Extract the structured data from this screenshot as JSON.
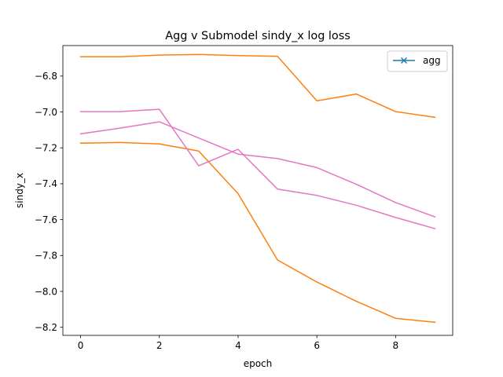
{
  "chart_data": {
    "type": "line",
    "title": "Agg v Submodel sindy_x log loss",
    "xlabel": "epoch",
    "ylabel": "sindy_x",
    "xlim": [
      -0.45,
      9.45
    ],
    "ylim": [
      -8.245,
      -6.63
    ],
    "x_ticks": [
      0,
      2,
      4,
      6,
      8
    ],
    "y_ticks": [
      -8.2,
      -8.0,
      -7.8,
      -7.6,
      -7.4,
      -7.2,
      -7.0,
      -6.8
    ],
    "x": [
      0,
      1,
      2,
      3,
      4,
      5,
      6,
      7,
      8,
      9
    ],
    "series": [
      {
        "color": "#ff7f0e",
        "values": [
          -6.692,
          -6.692,
          -6.683,
          -6.68,
          -6.686,
          -6.69,
          -6.938,
          -6.9,
          -6.998,
          -7.03
        ]
      },
      {
        "color": "#ff7f0e",
        "values": [
          -7.174,
          -7.17,
          -7.178,
          -7.218,
          -7.455,
          -7.825,
          -7.948,
          -8.055,
          -8.15,
          -8.172
        ]
      },
      {
        "color": "#e377c2",
        "values": [
          -6.998,
          -6.998,
          -6.985,
          -7.3,
          -7.208,
          -7.43,
          -7.465,
          -7.52,
          -7.588,
          -7.65
        ]
      },
      {
        "color": "#e377c2",
        "values": [
          -7.122,
          -7.09,
          -7.055,
          -7.145,
          -7.235,
          -7.26,
          -7.31,
          -7.403,
          -7.505,
          -7.585
        ]
      }
    ],
    "legend": {
      "position": "upper right",
      "entries": [
        {
          "label": "agg",
          "color": "#1f77b4",
          "marker": "x"
        }
      ]
    },
    "grid": false
  }
}
